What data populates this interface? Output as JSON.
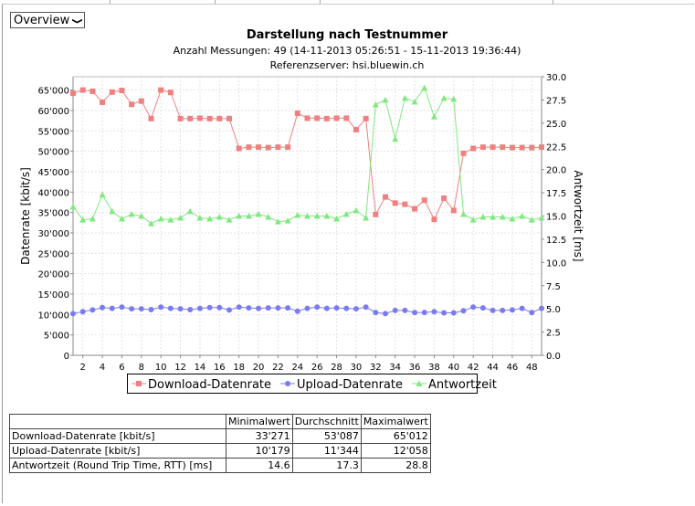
{
  "select": {
    "value": "Overview"
  },
  "header": {
    "title": "Darstellung nach Testnummer",
    "subtitle": "Anzahl Messungen: 49 (14-11-2013 05:26:51 - 15-11-2013 19:36:44)",
    "server": "Referenzserver: hsi.bluewin.ch"
  },
  "chart_data": {
    "type": "line",
    "title": "Darstellung nach Testnummer",
    "x": [
      1,
      2,
      3,
      4,
      5,
      6,
      7,
      8,
      9,
      10,
      11,
      12,
      13,
      14,
      15,
      16,
      17,
      18,
      19,
      20,
      21,
      22,
      23,
      24,
      25,
      26,
      27,
      28,
      29,
      30,
      31,
      32,
      33,
      34,
      35,
      36,
      37,
      38,
      39,
      40,
      41,
      42,
      43,
      44,
      45,
      46,
      47,
      48,
      49
    ],
    "xlim": [
      1,
      49
    ],
    "xticks": [
      2,
      4,
      6,
      8,
      10,
      12,
      14,
      16,
      18,
      20,
      22,
      24,
      26,
      28,
      30,
      32,
      34,
      36,
      38,
      40,
      42,
      44,
      46,
      48
    ],
    "ylabel": "Datenrate [kbit/s]",
    "ylim": [
      0,
      68263
    ],
    "yticks": [
      "0",
      "5'000",
      "10'000",
      "15'000",
      "20'000",
      "25'000",
      "30'000",
      "35'000",
      "40'000",
      "45'000",
      "50'000",
      "55'000",
      "60'000",
      "65'000"
    ],
    "y2label": "Antwortzeit [ms]",
    "y2lim": [
      0,
      30
    ],
    "y2ticks": [
      "0.0",
      "2.5",
      "5.0",
      "7.5",
      "10.0",
      "12.5",
      "15.0",
      "17.5",
      "20.0",
      "22.5",
      "25.0",
      "27.5",
      "30.0"
    ],
    "grid": true,
    "legend_placement": "bottom",
    "series": [
      {
        "name": "Download-Datenrate",
        "axis": "left",
        "color": "#f08080",
        "marker": "square",
        "values": [
          64200,
          65000,
          64700,
          62000,
          64500,
          64900,
          61500,
          62300,
          58000,
          65000,
          64400,
          58000,
          58000,
          58100,
          58000,
          58000,
          58000,
          50700,
          51000,
          51000,
          50900,
          51000,
          51000,
          59300,
          58100,
          58100,
          58000,
          58100,
          58100,
          55300,
          58000,
          34500,
          38800,
          37300,
          37000,
          35900,
          38000,
          33300,
          38500,
          35500,
          49500,
          50700,
          51000,
          51000,
          51000,
          50900,
          50900,
          50900,
          51000
        ]
      },
      {
        "name": "Upload-Datenrate",
        "axis": "left",
        "color": "#7b7bf0",
        "marker": "circle",
        "values": [
          10200,
          10700,
          11100,
          11700,
          11500,
          11800,
          11400,
          11400,
          11200,
          11800,
          11500,
          11400,
          11200,
          11500,
          11700,
          11700,
          11100,
          11800,
          11600,
          11500,
          11600,
          11600,
          11600,
          10800,
          11500,
          11800,
          11500,
          11600,
          11500,
          11400,
          11800,
          10500,
          10200,
          11000,
          11000,
          10500,
          10500,
          10700,
          10400,
          10400,
          10900,
          11800,
          11600,
          11000,
          11000,
          11100,
          11500,
          10500,
          11500
        ]
      },
      {
        "name": "Antwortzeit",
        "axis": "right",
        "color": "#80e880",
        "marker": "triangle",
        "values": [
          16.0,
          14.6,
          14.7,
          17.3,
          15.5,
          14.7,
          15.2,
          15.0,
          14.2,
          14.7,
          14.6,
          14.8,
          15.5,
          14.8,
          14.7,
          14.9,
          14.6,
          15.0,
          15.0,
          15.2,
          14.9,
          14.4,
          14.5,
          15.1,
          15.0,
          15.0,
          15.0,
          14.7,
          15.2,
          15.6,
          14.8,
          27.0,
          27.5,
          23.3,
          27.7,
          27.3,
          28.8,
          25.7,
          27.7,
          27.6,
          15.2,
          14.6,
          14.9,
          14.9,
          14.9,
          14.7,
          15.0,
          14.6,
          14.8
        ]
      }
    ]
  },
  "table": {
    "headers": [
      "",
      "Minimalwert",
      "Durchschnitt",
      "Maximalwert"
    ],
    "rows": [
      [
        "Download-Datenrate [kbit/s]",
        "33'271",
        "53'087",
        "65'012"
      ],
      [
        "Upload-Datenrate [kbit/s]",
        "10'179",
        "11'344",
        "12'058"
      ],
      [
        "Antwortzeit (Round Trip Time, RTT) [ms]",
        "14.6",
        "17.3",
        "28.8"
      ]
    ]
  }
}
